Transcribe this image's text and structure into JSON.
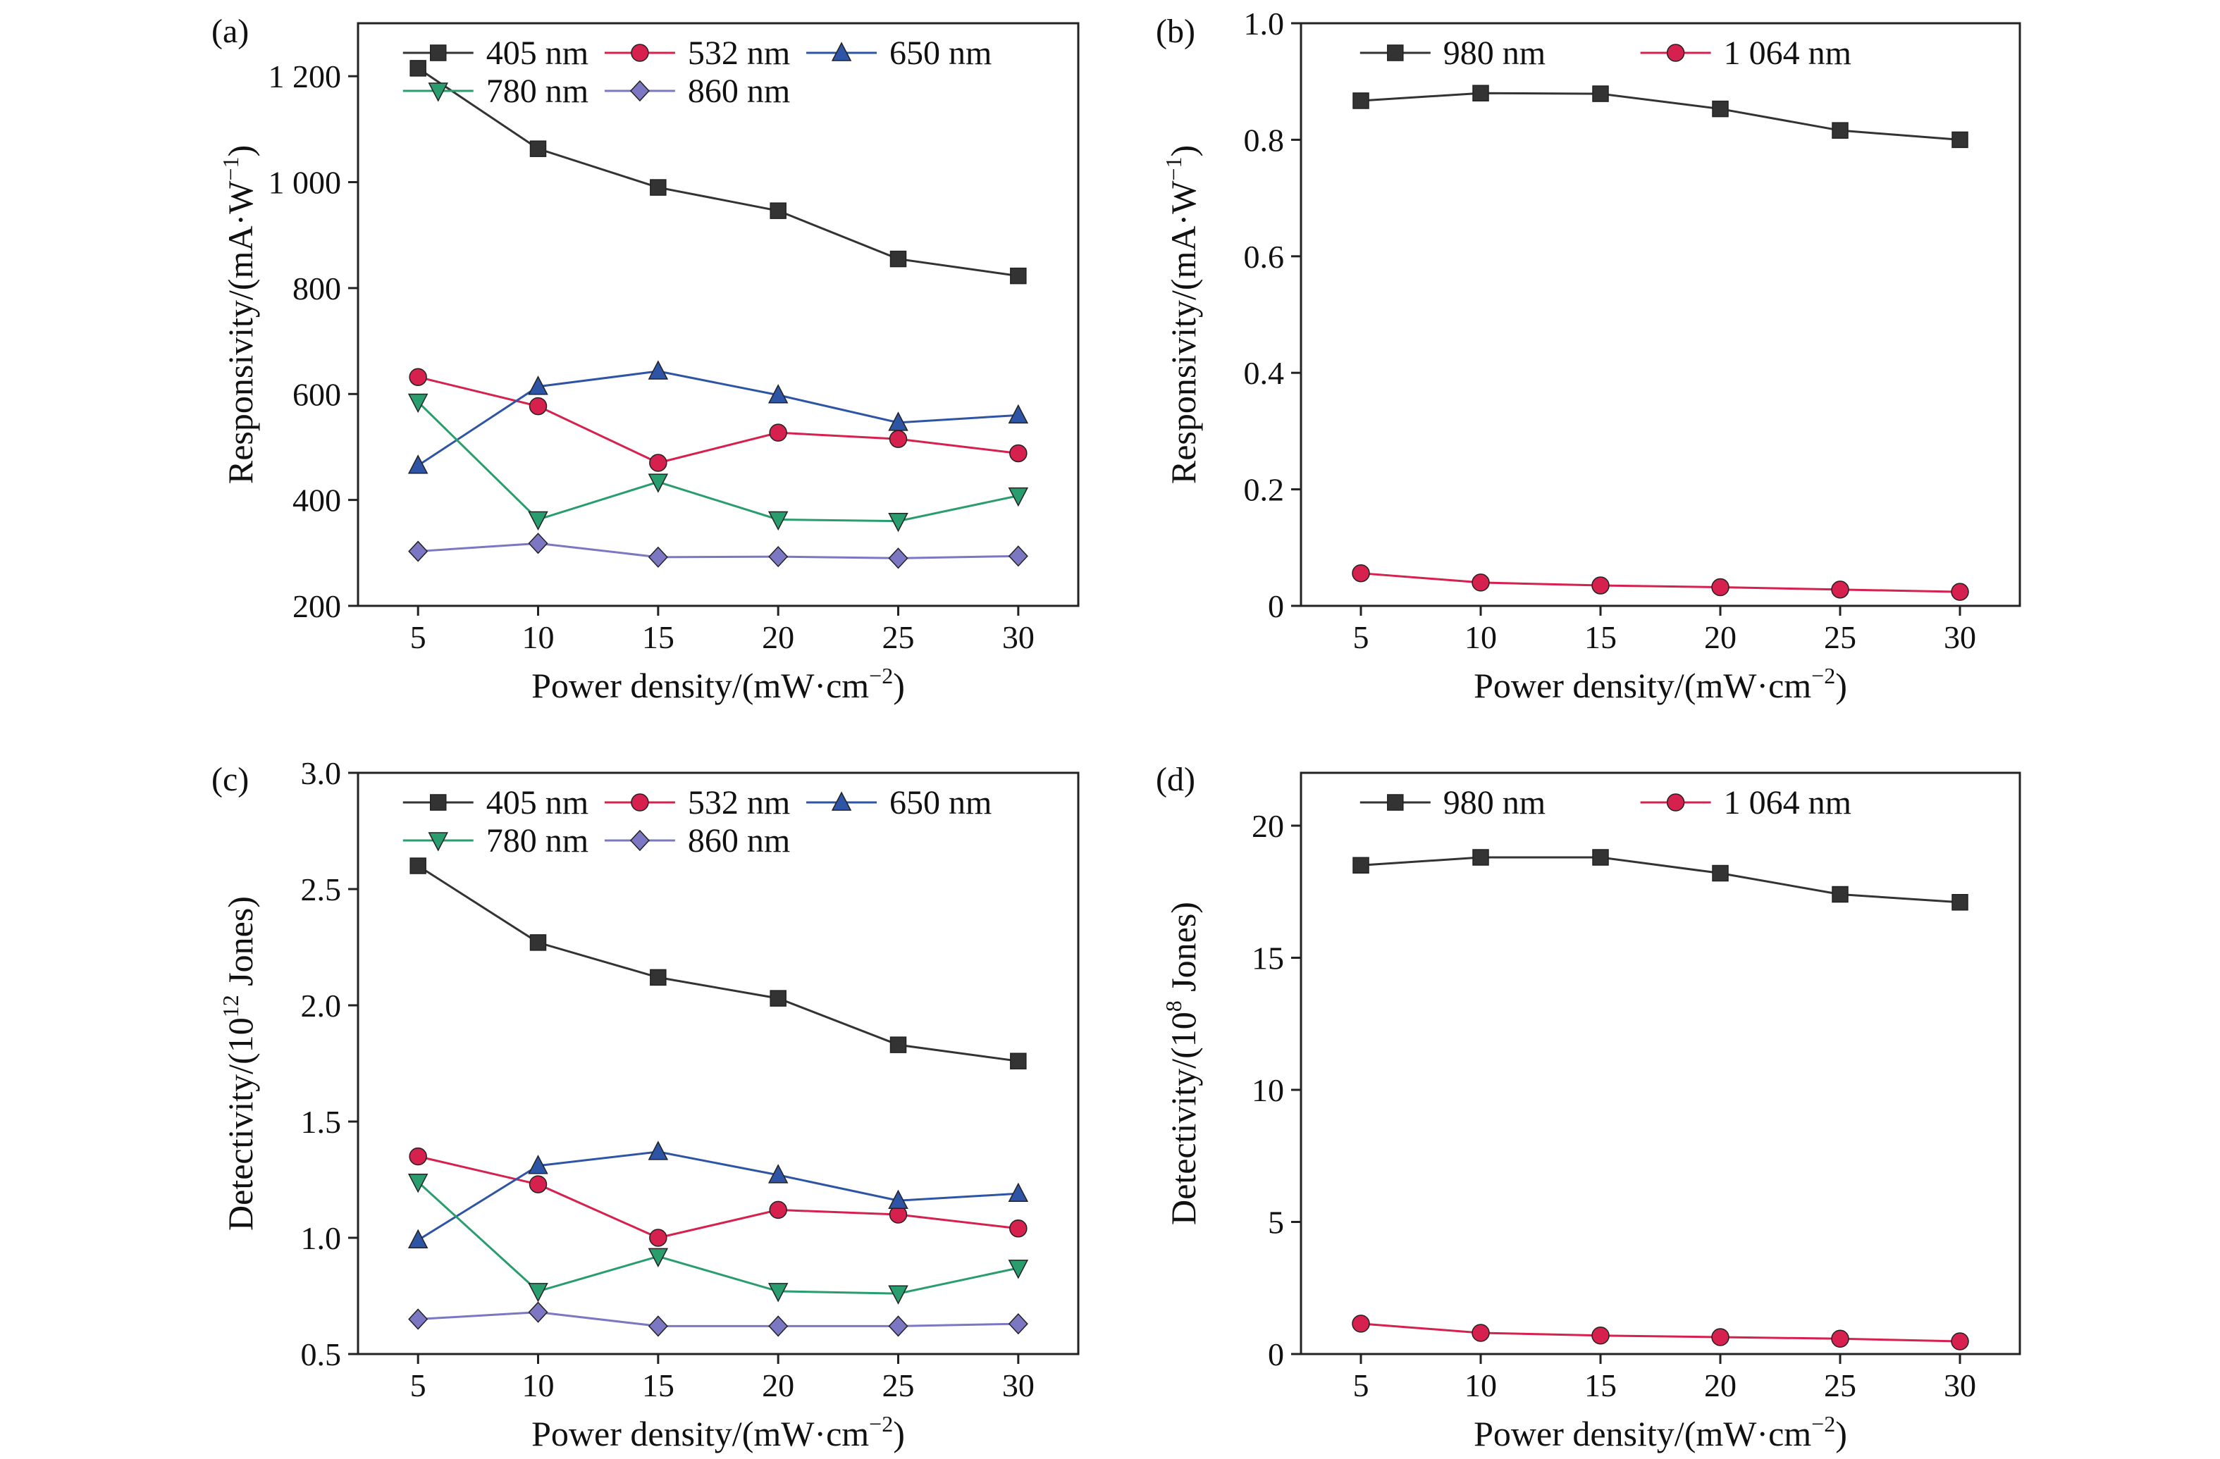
{
  "chart_data": [
    {
      "panel": "(a)",
      "type": "line",
      "xlabel": "Power density/(mW·cm",
      "xlabel_sup": "−2",
      "xlabel_end": ")",
      "ylabel": "Responsivity/(mA·W",
      "ylabel_sup": "−1",
      "ylabel_end": ")",
      "x": [
        5,
        10,
        15,
        20,
        25,
        30
      ],
      "xlim": [
        2.5,
        32.5
      ],
      "ylim": [
        200,
        1300
      ],
      "x_ticks": [
        "5",
        "10",
        "15",
        "20",
        "25",
        "30"
      ],
      "y_ticks": [
        {
          "v": 200,
          "label": "200"
        },
        {
          "v": 400,
          "label": "400"
        },
        {
          "v": 600,
          "label": "600"
        },
        {
          "v": 800,
          "label": "800"
        },
        {
          "v": 1000,
          "label": "1 000"
        },
        {
          "v": 1200,
          "label": "1 200"
        }
      ],
      "legend_placement": "top",
      "series": [
        {
          "name": "405 nm",
          "color": "#333333",
          "marker": "square",
          "values": [
            1215,
            1063,
            990,
            946,
            855,
            823
          ]
        },
        {
          "name": "532 nm",
          "color": "#d6204e",
          "marker": "circle",
          "values": [
            632,
            577,
            470,
            527,
            515,
            488
          ]
        },
        {
          "name": "650 nm",
          "color": "#2e55a5",
          "marker": "triangle-up",
          "values": [
            465,
            614,
            643,
            598,
            546,
            560
          ]
        },
        {
          "name": "780 nm",
          "color": "#2a9d6e",
          "marker": "triangle-down",
          "values": [
            585,
            363,
            434,
            363,
            360,
            408
          ]
        },
        {
          "name": "860 nm",
          "color": "#7b77c2",
          "marker": "diamond",
          "values": [
            303,
            318,
            292,
            293,
            290,
            294
          ]
        }
      ]
    },
    {
      "panel": "(b)",
      "type": "line",
      "xlabel": "Power density/(mW·cm",
      "xlabel_sup": "−2",
      "xlabel_end": ")",
      "ylabel": "Responsivity/(mA·W",
      "ylabel_sup": "−1",
      "ylabel_end": ")",
      "x": [
        5,
        10,
        15,
        20,
        25,
        30
      ],
      "xlim": [
        2.5,
        32.5
      ],
      "ylim": [
        0,
        1.0
      ],
      "x_ticks": [
        "5",
        "10",
        "15",
        "20",
        "25",
        "30"
      ],
      "y_ticks": [
        {
          "v": 0,
          "label": "0"
        },
        {
          "v": 0.2,
          "label": "0.2"
        },
        {
          "v": 0.4,
          "label": "0.4"
        },
        {
          "v": 0.6,
          "label": "0.6"
        },
        {
          "v": 0.8,
          "label": "0.8"
        },
        {
          "v": 1.0,
          "label": "1.0"
        }
      ],
      "legend_placement": "top",
      "series": [
        {
          "name": "980 nm",
          "color": "#333333",
          "marker": "square",
          "values": [
            0.867,
            0.88,
            0.879,
            0.853,
            0.816,
            0.8
          ]
        },
        {
          "name": "1 064 nm",
          "color": "#d6204e",
          "marker": "circle",
          "values": [
            0.056,
            0.04,
            0.035,
            0.032,
            0.028,
            0.024
          ]
        }
      ]
    },
    {
      "panel": "(c)",
      "type": "line",
      "xlabel": "Power density/(mW·cm",
      "xlabel_sup": "−2",
      "xlabel_end": ")",
      "ylabel": "Detectivity/(10",
      "ylabel_sup": "12",
      "ylabel_end": " Jones)",
      "x": [
        5,
        10,
        15,
        20,
        25,
        30
      ],
      "xlim": [
        2.5,
        32.5
      ],
      "ylim": [
        0.5,
        3.0
      ],
      "x_ticks": [
        "5",
        "10",
        "15",
        "20",
        "25",
        "30"
      ],
      "y_ticks": [
        {
          "v": 0.5,
          "label": "0.5"
        },
        {
          "v": 1.0,
          "label": "1.0"
        },
        {
          "v": 1.5,
          "label": "1.5"
        },
        {
          "v": 2.0,
          "label": "2.0"
        },
        {
          "v": 2.5,
          "label": "2.5"
        },
        {
          "v": 3.0,
          "label": "3.0"
        }
      ],
      "legend_placement": "top",
      "series": [
        {
          "name": "405 nm",
          "color": "#333333",
          "marker": "square",
          "values": [
            2.6,
            2.27,
            2.12,
            2.03,
            1.83,
            1.76
          ]
        },
        {
          "name": "532 nm",
          "color": "#d6204e",
          "marker": "circle",
          "values": [
            1.35,
            1.23,
            1.0,
            1.12,
            1.1,
            1.04
          ]
        },
        {
          "name": "650 nm",
          "color": "#2e55a5",
          "marker": "triangle-up",
          "values": [
            0.99,
            1.31,
            1.37,
            1.27,
            1.16,
            1.19
          ]
        },
        {
          "name": "780 nm",
          "color": "#2a9d6e",
          "marker": "triangle-down",
          "values": [
            1.24,
            0.77,
            0.92,
            0.77,
            0.76,
            0.87
          ]
        },
        {
          "name": "860 nm",
          "color": "#7b77c2",
          "marker": "diamond",
          "values": [
            0.65,
            0.68,
            0.62,
            0.62,
            0.62,
            0.63
          ]
        }
      ]
    },
    {
      "panel": "(d)",
      "type": "line",
      "xlabel": "Power density/(mW·cm",
      "xlabel_sup": "−2",
      "xlabel_end": ")",
      "ylabel": "Detectivity/(10",
      "ylabel_sup": "8",
      "ylabel_end": " Jones)",
      "x": [
        5,
        10,
        15,
        20,
        25,
        30
      ],
      "xlim": [
        2.5,
        32.5
      ],
      "ylim": [
        0,
        22
      ],
      "x_ticks": [
        "5",
        "10",
        "15",
        "20",
        "25",
        "30"
      ],
      "y_ticks": [
        {
          "v": 0,
          "label": "0"
        },
        {
          "v": 5,
          "label": "5"
        },
        {
          "v": 10,
          "label": "10"
        },
        {
          "v": 15,
          "label": "15"
        },
        {
          "v": 20,
          "label": "20"
        }
      ],
      "legend_placement": "top",
      "series": [
        {
          "name": "980 nm",
          "color": "#333333",
          "marker": "square",
          "values": [
            18.5,
            18.8,
            18.8,
            18.2,
            17.4,
            17.1
          ]
        },
        {
          "name": "1 064 nm",
          "color": "#d6204e",
          "marker": "circle",
          "values": [
            1.15,
            0.8,
            0.7,
            0.64,
            0.58,
            0.48
          ]
        }
      ]
    }
  ]
}
